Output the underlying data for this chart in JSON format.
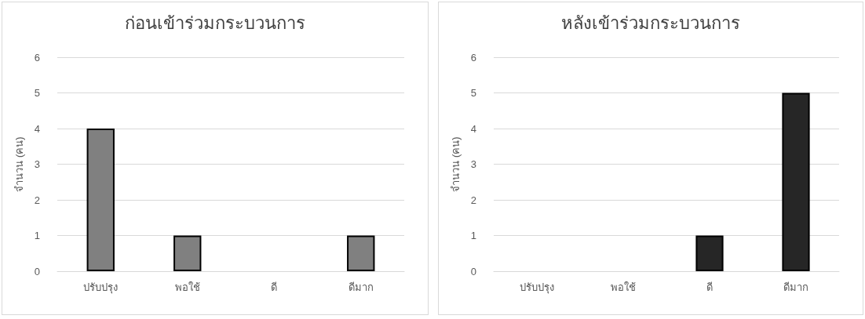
{
  "chart_data": [
    {
      "type": "bar",
      "title": "ก่อนเข้าร่วมกระบวนการ",
      "ylabel": "จำนวน (คน)",
      "categories": [
        "ปรับปรุง",
        "พอใช้",
        "ดี",
        "ดีมาก"
      ],
      "series": [
        {
          "color": "#808080",
          "values": [
            4,
            1,
            0,
            1
          ]
        }
      ],
      "ylim": [
        0,
        6
      ],
      "yticks": [
        0,
        1,
        2,
        3,
        4,
        5,
        6
      ],
      "grid": "y"
    },
    {
      "type": "bar",
      "title": "หลังเข้าร่วมกระบวนการ",
      "ylabel": "จำนวน (คน)",
      "categories": [
        "ปรับปรุง",
        "พอใช้",
        "ดี",
        "ดีมาก"
      ],
      "series": [
        {
          "color": "#262626",
          "values": [
            0,
            0,
            1,
            5
          ]
        }
      ],
      "ylim": [
        0,
        6
      ],
      "yticks": [
        0,
        1,
        2,
        3,
        4,
        5,
        6
      ],
      "grid": "y"
    }
  ]
}
